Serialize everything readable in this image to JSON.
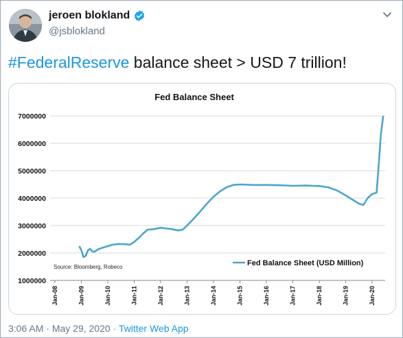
{
  "tweet": {
    "display_name": "jeroen blokland",
    "handle": "@jsblokland",
    "text_hashtag": "#FederalReserve",
    "text_body": " balance sheet > USD 7 trillion!",
    "time": "3:06 AM",
    "date": "May 29, 2020",
    "source": "Twitter Web App",
    "separator": "·"
  },
  "colors": {
    "link": "#1b95e0",
    "line": "#4aa6c9",
    "verified": "#1da1f2"
  },
  "icons": [
    "verified-badge-icon",
    "chevron-down-icon",
    "avatar"
  ],
  "chart_data": {
    "type": "line",
    "title": "Fed Balance Sheet",
    "xlabel": "",
    "ylabel": "",
    "source_note": "Source: Bloomberg, Robeco",
    "legend": {
      "label": "Fed Balance Sheet (USD Million)",
      "placement": "bottom-right"
    },
    "ylim": [
      1000000,
      7000000
    ],
    "y_ticks": [
      "1000000",
      "2000000",
      "3000000",
      "4000000",
      "5000000",
      "6000000",
      "7000000"
    ],
    "x_ticks": [
      "Jan-08",
      "Jan-09",
      "Jan-10",
      "Jan-11",
      "Jan-12",
      "Jan-13",
      "Jan-14",
      "Jan-15",
      "Jan-16",
      "Jan-17",
      "Jan-18",
      "Jan-19",
      "Jan-20"
    ],
    "grid": true,
    "series": [
      {
        "name": "Fed Balance Sheet (USD Million)",
        "points": [
          [
            2008.92,
            2250000
          ],
          [
            2009.0,
            2100000
          ],
          [
            2009.08,
            1850000
          ],
          [
            2009.17,
            1900000
          ],
          [
            2009.25,
            2100000
          ],
          [
            2009.33,
            2150000
          ],
          [
            2009.42,
            2050000
          ],
          [
            2009.5,
            2050000
          ],
          [
            2009.58,
            2100000
          ],
          [
            2009.67,
            2150000
          ],
          [
            2009.83,
            2200000
          ],
          [
            2010.0,
            2250000
          ],
          [
            2010.17,
            2300000
          ],
          [
            2010.42,
            2330000
          ],
          [
            2010.67,
            2320000
          ],
          [
            2010.83,
            2300000
          ],
          [
            2011.0,
            2400000
          ],
          [
            2011.17,
            2550000
          ],
          [
            2011.33,
            2700000
          ],
          [
            2011.5,
            2850000
          ],
          [
            2011.75,
            2870000
          ],
          [
            2012.0,
            2920000
          ],
          [
            2012.17,
            2900000
          ],
          [
            2012.42,
            2870000
          ],
          [
            2012.67,
            2820000
          ],
          [
            2012.83,
            2850000
          ],
          [
            2013.0,
            3000000
          ],
          [
            2013.25,
            3250000
          ],
          [
            2013.5,
            3520000
          ],
          [
            2013.75,
            3800000
          ],
          [
            2014.0,
            4050000
          ],
          [
            2014.25,
            4250000
          ],
          [
            2014.5,
            4400000
          ],
          [
            2014.75,
            4480000
          ],
          [
            2015.0,
            4500000
          ],
          [
            2015.5,
            4480000
          ],
          [
            2016.0,
            4480000
          ],
          [
            2016.5,
            4470000
          ],
          [
            2017.0,
            4450000
          ],
          [
            2017.5,
            4460000
          ],
          [
            2018.0,
            4440000
          ],
          [
            2018.33,
            4400000
          ],
          [
            2018.67,
            4280000
          ],
          [
            2019.0,
            4100000
          ],
          [
            2019.25,
            3950000
          ],
          [
            2019.5,
            3800000
          ],
          [
            2019.67,
            3750000
          ],
          [
            2019.83,
            4000000
          ],
          [
            2020.0,
            4150000
          ],
          [
            2020.17,
            4200000
          ],
          [
            2020.25,
            5200000
          ],
          [
            2020.33,
            6300000
          ],
          [
            2020.42,
            7000000
          ]
        ]
      }
    ]
  }
}
